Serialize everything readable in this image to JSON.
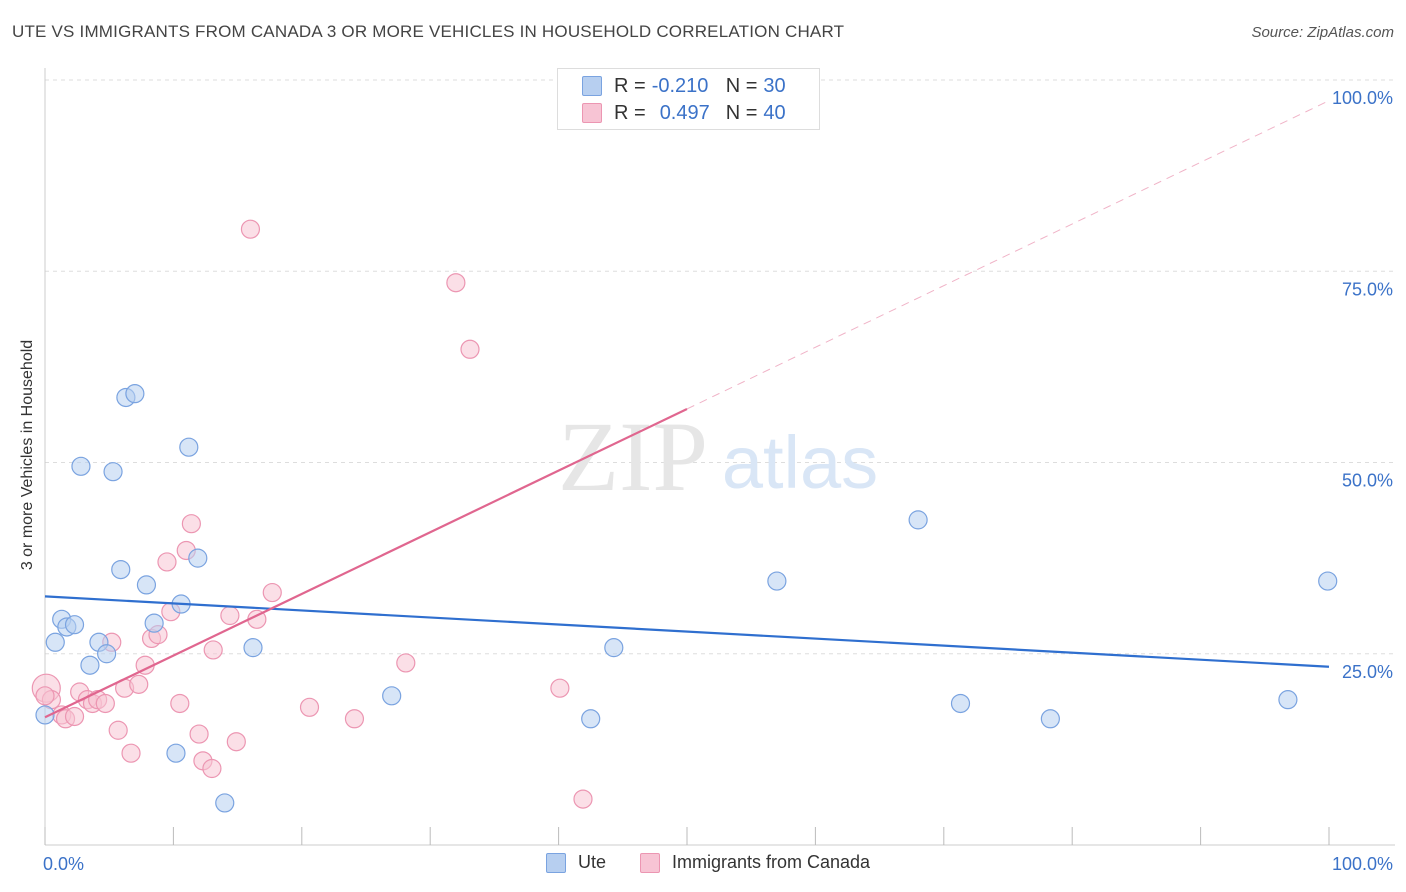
{
  "title": "UTE VS IMMIGRANTS FROM CANADA 3 OR MORE VEHICLES IN HOUSEHOLD CORRELATION CHART",
  "source": "Source: ZipAtlas.com",
  "watermark": {
    "zip": "ZIP",
    "atlas": "atlas"
  },
  "legend": {
    "ute": {
      "r_label": "R =",
      "r_value": "-0.210",
      "n_label": "N =",
      "n_value": "30"
    },
    "canada": {
      "r_label": "R =",
      "r_value": "0.497",
      "n_label": "N =",
      "n_value": "40"
    }
  },
  "colors": {
    "ute_fill": "#b7cff0",
    "ute_stroke": "#7aa3e0",
    "ute_line": "#2f6fcf",
    "canada_fill": "#f7c4d4",
    "canada_stroke": "#ec96b2",
    "canada_line": "#e0668f",
    "axis_text": "#3b72c8",
    "grid": "#dddddd"
  },
  "chart_data": {
    "type": "scatter",
    "title": "UTE VS IMMIGRANTS FROM CANADA 3 OR MORE VEHICLES IN HOUSEHOLD CORRELATION CHART",
    "xlabel": "",
    "ylabel": "3 or more Vehicles in Household",
    "xlim": [
      0,
      100
    ],
    "ylim": [
      0,
      100
    ],
    "x_tick_labels": [
      {
        "value": 0,
        "label": "0.0%"
      },
      {
        "value": 100,
        "label": "100.0%"
      }
    ],
    "y_tick_labels": [
      {
        "value": 25,
        "label": "25.0%"
      },
      {
        "value": 50,
        "label": "50.0%"
      },
      {
        "value": 75,
        "label": "75.0%"
      },
      {
        "value": 100,
        "label": "100.0%"
      }
    ],
    "grid": true,
    "legend_position": "top-center",
    "series": [
      {
        "name": "Ute",
        "points": [
          [
            0.0,
            17.0
          ],
          [
            0.8,
            26.5
          ],
          [
            1.3,
            29.5
          ],
          [
            1.7,
            28.5
          ],
          [
            2.3,
            28.8
          ],
          [
            2.8,
            49.5
          ],
          [
            3.5,
            23.5
          ],
          [
            4.2,
            26.5
          ],
          [
            4.8,
            25.0
          ],
          [
            5.3,
            48.8
          ],
          [
            5.9,
            36.0
          ],
          [
            6.3,
            58.5
          ],
          [
            7.0,
            59.0
          ],
          [
            7.9,
            34.0
          ],
          [
            8.5,
            29.0
          ],
          [
            10.2,
            12.0
          ],
          [
            10.6,
            31.5
          ],
          [
            11.2,
            52.0
          ],
          [
            11.9,
            37.5
          ],
          [
            14.0,
            5.5
          ],
          [
            16.2,
            25.8
          ],
          [
            27.0,
            19.5
          ],
          [
            42.5,
            16.5
          ],
          [
            44.3,
            25.8
          ],
          [
            57.0,
            34.5
          ],
          [
            68.0,
            42.5
          ],
          [
            71.3,
            18.5
          ],
          [
            78.3,
            16.5
          ],
          [
            96.8,
            19.0
          ],
          [
            99.9,
            34.5
          ]
        ],
        "trend": {
          "x": [
            0,
            100
          ],
          "y": [
            32.5,
            23.3
          ]
        }
      },
      {
        "name": "Immigrants from Canada",
        "points": [
          [
            0.1,
            20.5
          ],
          [
            0.5,
            19.0
          ],
          [
            1.3,
            17.0
          ],
          [
            1.6,
            16.5
          ],
          [
            2.3,
            16.8
          ],
          [
            2.7,
            20.0
          ],
          [
            3.3,
            19.0
          ],
          [
            3.7,
            18.5
          ],
          [
            4.1,
            19.0
          ],
          [
            4.7,
            18.5
          ],
          [
            5.2,
            26.5
          ],
          [
            5.7,
            15.0
          ],
          [
            6.2,
            20.5
          ],
          [
            6.7,
            12.0
          ],
          [
            7.3,
            21.0
          ],
          [
            7.8,
            23.5
          ],
          [
            8.3,
            27.0
          ],
          [
            8.8,
            27.5
          ],
          [
            9.5,
            37.0
          ],
          [
            9.8,
            30.5
          ],
          [
            10.5,
            18.5
          ],
          [
            11.0,
            38.5
          ],
          [
            11.4,
            42.0
          ],
          [
            12.0,
            14.5
          ],
          [
            12.3,
            11.0
          ],
          [
            13.0,
            10.0
          ],
          [
            13.1,
            25.5
          ],
          [
            14.4,
            30.0
          ],
          [
            14.9,
            13.5
          ],
          [
            16.0,
            80.5
          ],
          [
            16.5,
            29.5
          ],
          [
            17.7,
            33.0
          ],
          [
            20.6,
            18.0
          ],
          [
            24.1,
            16.5
          ],
          [
            28.1,
            23.8
          ],
          [
            32.0,
            73.5
          ],
          [
            33.1,
            64.8
          ],
          [
            40.1,
            20.5
          ],
          [
            41.9,
            6.0
          ],
          [
            0.0,
            19.5
          ]
        ],
        "trend": {
          "x": [
            0,
            50
          ],
          "y": [
            16.7,
            57.0
          ]
        },
        "trend_extension": {
          "x": [
            50,
            100
          ],
          "y": [
            57.0,
            97.3
          ]
        }
      }
    ]
  },
  "bottom_legend": [
    {
      "label": "Ute"
    },
    {
      "label": "Immigrants from Canada"
    }
  ]
}
